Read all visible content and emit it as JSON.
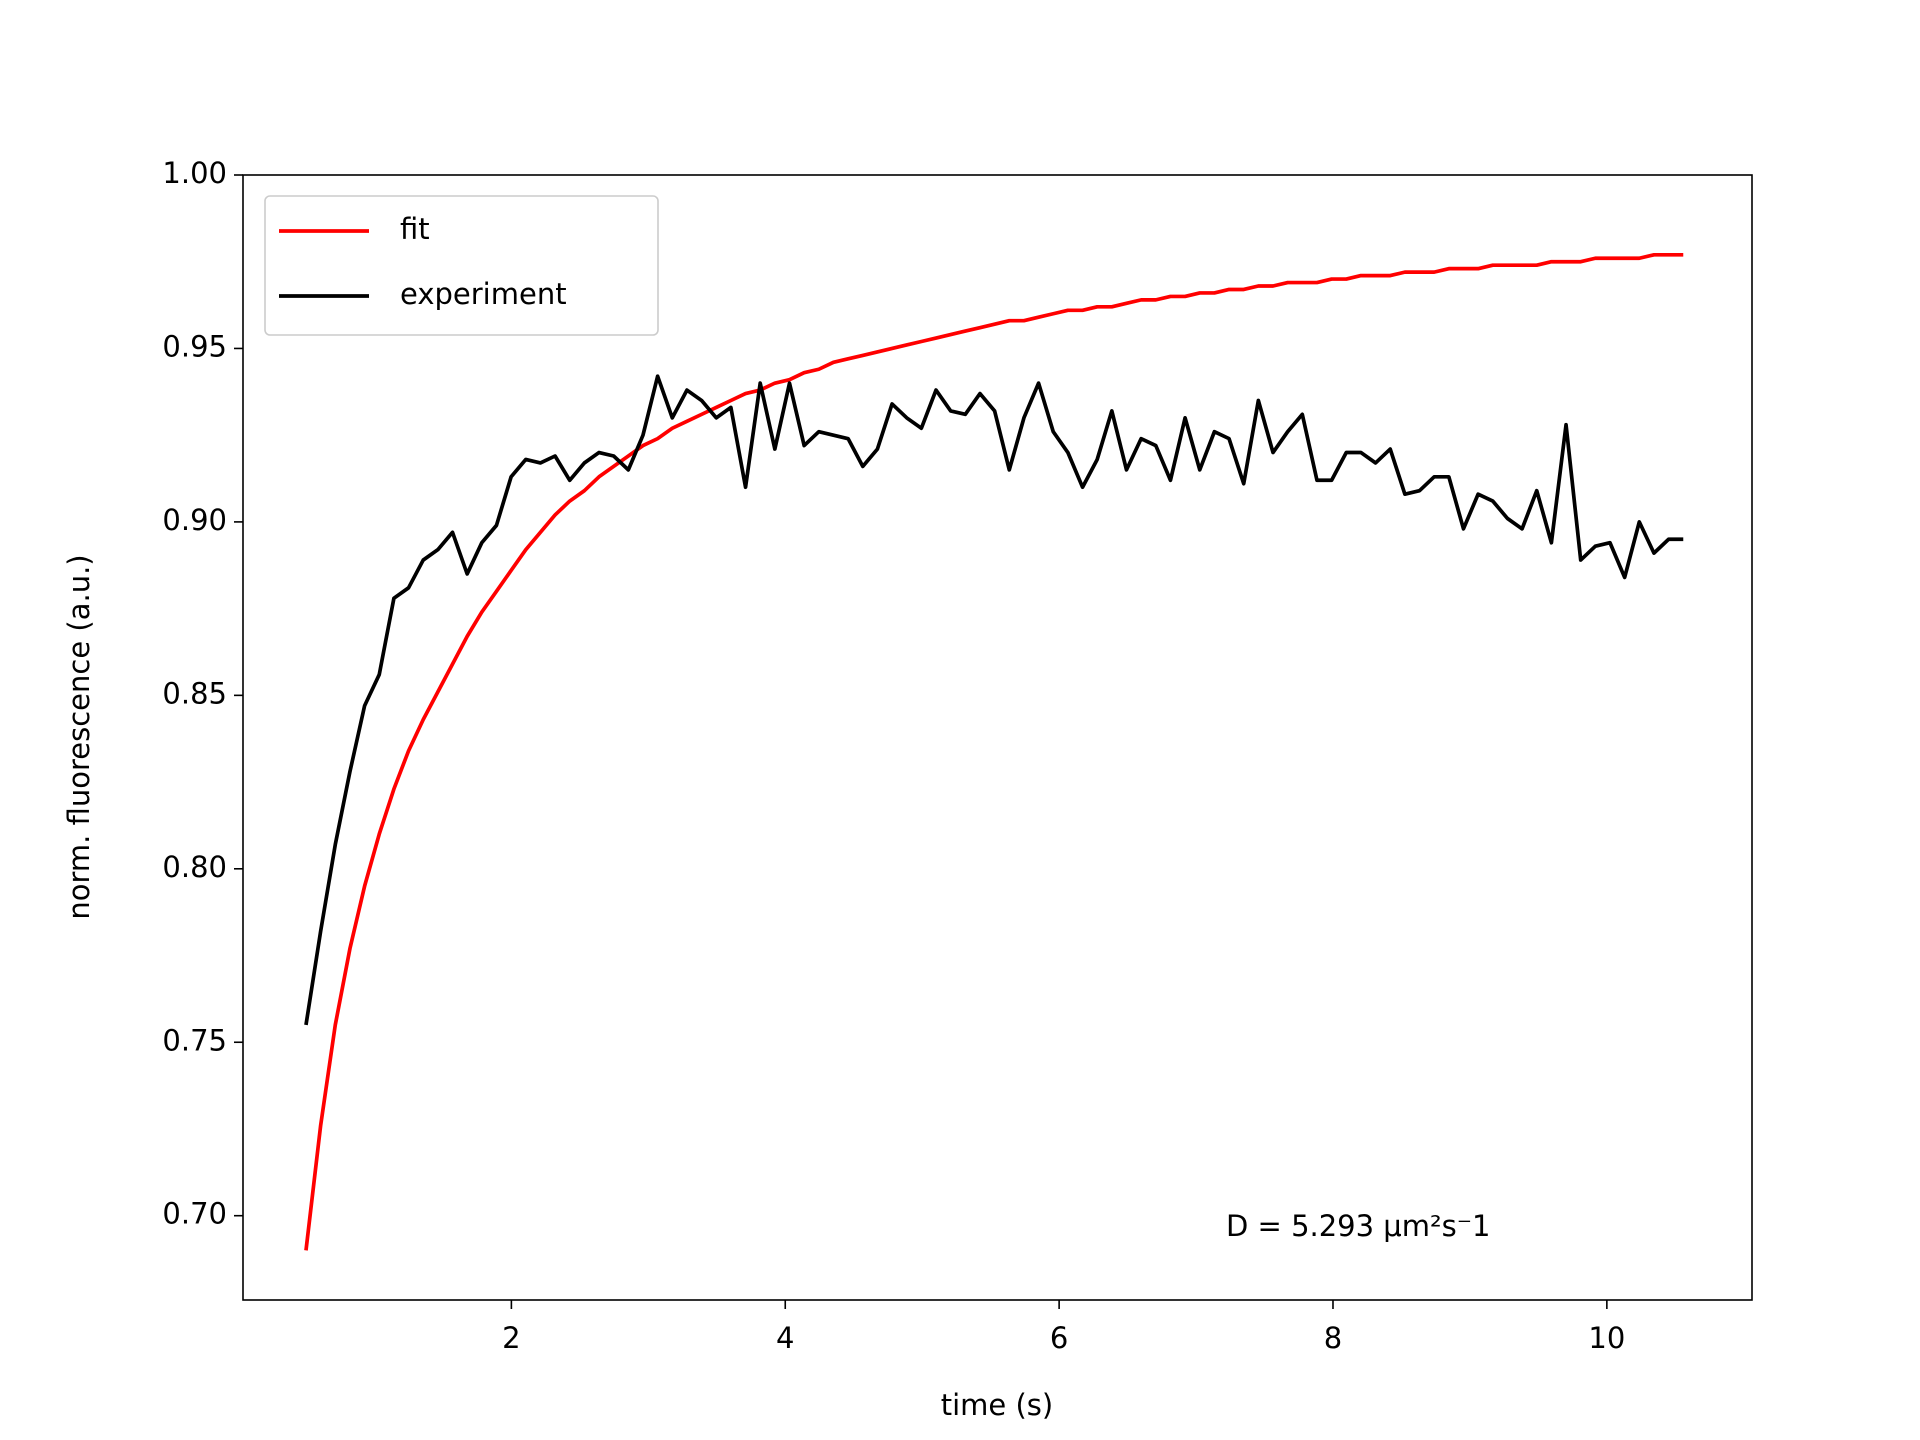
{
  "chart_data": {
    "type": "line",
    "xlabel": "time (s)",
    "ylabel": "norm. fluorescence (a.u.)",
    "annotation": "D = 5.293 μm²s⁻1",
    "legend": "upper left",
    "x": [
      0.5,
      0.607,
      0.714,
      0.821,
      0.928,
      1.035,
      1.142,
      1.249,
      1.356,
      1.463,
      1.57,
      1.677,
      1.784,
      1.891,
      1.998,
      2.105,
      2.212,
      2.319,
      2.426,
      2.533,
      2.64,
      2.747,
      2.854,
      2.961,
      3.068,
      3.175,
      3.282,
      3.389,
      3.496,
      3.603,
      3.71,
      3.817,
      3.924,
      4.031,
      4.138,
      4.245,
      4.352,
      4.459,
      4.566,
      4.673,
      4.78,
      4.887,
      4.994,
      5.101,
      5.208,
      5.315,
      5.422,
      5.529,
      5.636,
      5.743,
      5.85,
      5.957,
      6.064,
      6.171,
      6.278,
      6.385,
      6.492,
      6.599,
      6.706,
      6.813,
      6.92,
      7.027,
      7.134,
      7.241,
      7.348,
      7.455,
      7.562,
      7.669,
      7.776,
      7.883,
      7.99,
      8.097,
      8.204,
      8.311,
      8.418,
      8.525,
      8.632,
      8.739,
      8.846,
      8.953,
      9.06,
      9.167,
      9.274,
      9.381,
      9.488,
      9.595,
      9.702,
      9.809,
      9.916,
      10.023,
      10.13,
      10.237,
      10.344,
      10.451,
      10.558
    ],
    "series": [
      {
        "name": "fit",
        "color": "#ff0000",
        "values": [
          0.69,
          0.726,
          0.755,
          0.777,
          0.795,
          0.81,
          0.823,
          0.834,
          0.843,
          0.851,
          0.859,
          0.867,
          0.874,
          0.88,
          0.886,
          0.892,
          0.897,
          0.902,
          0.906,
          0.909,
          0.913,
          0.916,
          0.919,
          0.922,
          0.924,
          0.927,
          0.929,
          0.931,
          0.933,
          0.935,
          0.937,
          0.938,
          0.94,
          0.941,
          0.943,
          0.944,
          0.946,
          0.947,
          0.948,
          0.949,
          0.95,
          0.951,
          0.952,
          0.953,
          0.954,
          0.955,
          0.956,
          0.957,
          0.958,
          0.958,
          0.959,
          0.96,
          0.961,
          0.961,
          0.962,
          0.962,
          0.963,
          0.964,
          0.964,
          0.965,
          0.965,
          0.966,
          0.966,
          0.967,
          0.967,
          0.968,
          0.968,
          0.969,
          0.969,
          0.969,
          0.97,
          0.97,
          0.971,
          0.971,
          0.971,
          0.972,
          0.972,
          0.972,
          0.973,
          0.973,
          0.973,
          0.974,
          0.974,
          0.974,
          0.974,
          0.975,
          0.975,
          0.975,
          0.976,
          0.976,
          0.976,
          0.976,
          0.977,
          0.977,
          0.977
        ]
      },
      {
        "name": "experiment",
        "color": "#000000",
        "values": [
          0.755,
          0.782,
          0.807,
          0.828,
          0.847,
          0.856,
          0.878,
          0.881,
          0.889,
          0.892,
          0.897,
          0.885,
          0.894,
          0.899,
          0.913,
          0.918,
          0.917,
          0.919,
          0.912,
          0.917,
          0.92,
          0.919,
          0.915,
          0.925,
          0.942,
          0.93,
          0.938,
          0.935,
          0.93,
          0.933,
          0.91,
          0.94,
          0.921,
          0.94,
          0.922,
          0.926,
          0.925,
          0.924,
          0.916,
          0.921,
          0.934,
          0.93,
          0.927,
          0.938,
          0.932,
          0.931,
          0.937,
          0.932,
          0.915,
          0.93,
          0.94,
          0.926,
          0.92,
          0.91,
          0.918,
          0.932,
          0.915,
          0.924,
          0.922,
          0.912,
          0.93,
          0.915,
          0.926,
          0.924,
          0.911,
          0.935,
          0.92,
          0.926,
          0.931,
          0.912,
          0.912,
          0.92,
          0.92,
          0.917,
          0.921,
          0.908,
          0.909,
          0.913,
          0.913,
          0.898,
          0.908,
          0.906,
          0.901,
          0.898,
          0.909,
          0.894,
          0.928,
          0.889,
          0.893,
          0.894,
          0.884,
          0.9,
          0.891,
          0.895,
          0.895
        ]
      }
    ],
    "xlim": [
      0.04,
      11.06
    ],
    "ylim": [
      0.6757,
      1.0
    ],
    "xticks": [
      2,
      4,
      6,
      8,
      10
    ],
    "yticks": [
      {
        "value": 0.7,
        "label": "0.70"
      },
      {
        "value": 0.75,
        "label": "0.75"
      },
      {
        "value": 0.8,
        "label": "0.80"
      },
      {
        "value": 0.85,
        "label": "0.85"
      },
      {
        "value": 0.9,
        "label": "0.90"
      },
      {
        "value": 0.95,
        "label": "0.95"
      },
      {
        "value": 1.0,
        "label": "1.00"
      }
    ],
    "grid": false
  }
}
